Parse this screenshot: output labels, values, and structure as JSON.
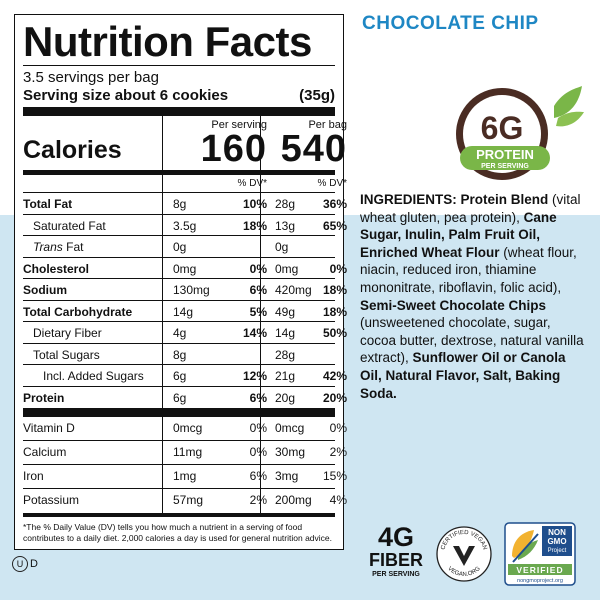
{
  "flavor": "CHOCOLATE CHIP",
  "nutrition": {
    "title": "Nutrition Facts",
    "servings": "3.5 servings per bag",
    "serving_size_label": "Serving size about 6 cookies",
    "serving_size_value": "(35g)",
    "per_serving_header": "Per serving",
    "per_bag_header": "Per bag",
    "calories_label": "Calories",
    "calories_serving": "160",
    "calories_bag": "540",
    "dv_header": "% DV*",
    "rows": [
      {
        "label": "Total Fat",
        "bold": true,
        "indent": 0,
        "s_amt": "8g",
        "s_dv": "10%",
        "b_amt": "28g",
        "b_dv": "36%"
      },
      {
        "label": "Saturated Fat",
        "bold": false,
        "indent": 1,
        "s_amt": "3.5g",
        "s_dv": "18%",
        "b_amt": "13g",
        "b_dv": "65%"
      },
      {
        "label": "Trans Fat",
        "bold": false,
        "italic_first": true,
        "indent": 1,
        "s_amt": "0g",
        "s_dv": "",
        "b_amt": "0g",
        "b_dv": ""
      },
      {
        "label": "Cholesterol",
        "bold": true,
        "indent": 0,
        "s_amt": "0mg",
        "s_dv": "0%",
        "b_amt": "0mg",
        "b_dv": "0%"
      },
      {
        "label": "Sodium",
        "bold": true,
        "indent": 0,
        "s_amt": "130mg",
        "s_dv": "6%",
        "b_amt": "420mg",
        "b_dv": "18%"
      },
      {
        "label": "Total Carbohydrate",
        "bold": true,
        "indent": 0,
        "s_amt": "14g",
        "s_dv": "5%",
        "b_amt": "49g",
        "b_dv": "18%"
      },
      {
        "label": "Dietary Fiber",
        "bold": false,
        "indent": 1,
        "s_amt": "4g",
        "s_dv": "14%",
        "b_amt": "14g",
        "b_dv": "50%"
      },
      {
        "label": "Total Sugars",
        "bold": false,
        "indent": 1,
        "s_amt": "8g",
        "s_dv": "",
        "b_amt": "28g",
        "b_dv": ""
      },
      {
        "label": "Incl. Added Sugars",
        "bold": false,
        "indent": 2,
        "s_amt": "6g",
        "s_dv": "12%",
        "b_amt": "21g",
        "b_dv": "42%"
      },
      {
        "label": "Protein",
        "bold": true,
        "indent": 0,
        "s_amt": "6g",
        "s_dv": "6%",
        "b_amt": "20g",
        "b_dv": "20%"
      }
    ],
    "vitamins": [
      {
        "label": "Vitamin D",
        "s_amt": "0mcg",
        "s_dv": "0%",
        "b_amt": "0mcg",
        "b_dv": "0%"
      },
      {
        "label": "Calcium",
        "s_amt": "11mg",
        "s_dv": "0%",
        "b_amt": "30mg",
        "b_dv": "2%"
      },
      {
        "label": "Iron",
        "s_amt": "1mg",
        "s_dv": "6%",
        "b_amt": "3mg",
        "b_dv": "15%"
      },
      {
        "label": "Potassium",
        "s_amt": "57mg",
        "s_dv": "2%",
        "b_amt": "200mg",
        "b_dv": "4%"
      }
    ],
    "footnote": "*The % Daily Value (DV) tells you how much a nutrient in a serving of food contributes to a daily diet. 2,000 calories a day is used for general nutrition advice."
  },
  "kosher_mark": "U",
  "kosher_suffix": "D",
  "protein_badge": {
    "amount": "6G",
    "label": "PROTEIN",
    "sub": "PER SERVING"
  },
  "ingredients": {
    "heading": "INGREDIENTS:",
    "segments": [
      {
        "t": "Protein Blend",
        "b": true
      },
      {
        "t": " (vital wheat gluten, pea protein), ",
        "b": false
      },
      {
        "t": "Cane Sugar, Inulin, Palm Fruit Oil, Enriched Wheat Flour",
        "b": true
      },
      {
        "t": " (wheat flour, niacin, reduced iron, thiamine mononitrate, riboflavin, folic acid), ",
        "b": false
      },
      {
        "t": "Semi-Sweet Chocolate Chips",
        "b": true
      },
      {
        "t": " (unsweetened chocolate, sugar, cocoa butter, dextrose, natural vanilla extract), ",
        "b": false
      },
      {
        "t": "Sunflower Oil or Canola Oil, Natural Flavor, Salt, Baking Soda.",
        "b": true
      }
    ]
  },
  "fiber_badge": {
    "amount": "4G",
    "label": "FIBER",
    "sub": "PER SERVING"
  },
  "vegan_badge": {
    "top": "CERTIFIED VEGAN",
    "bottom": "VEGAN.ORG"
  },
  "nongmo_badge": {
    "line1": "NON",
    "line2": "GMO",
    "line3": "Project",
    "verified": "VERIFIED",
    "url": "nongmoproject.org"
  },
  "colors": {
    "flavor_blue": "#1e87c4",
    "bg_light_blue": "#cfe6f2",
    "badge_brown": "#4a2c23",
    "badge_green": "#7ab648"
  }
}
